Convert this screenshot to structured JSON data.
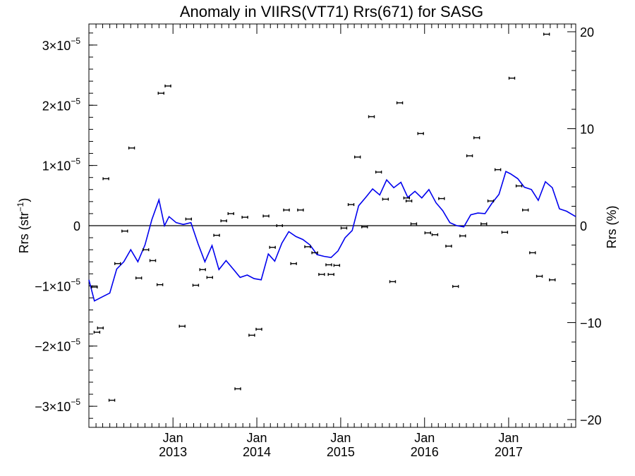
{
  "chart_data": {
    "type": "scatter",
    "title": "Anomaly in VIIRS(VT71) Rrs(671) for SASG",
    "ylabel_left": "Rrs (str",
    "ylabel_left_sup": "−1",
    "ylabel_left_close": ")",
    "ylabel_right": "Rrs (%)",
    "x_range": [
      "2012-01-01",
      "2017-10-20"
    ],
    "y_left_range": [
      -3.35e-05,
      3.35e-05
    ],
    "y_right_range": [
      -20.8,
      20.8
    ],
    "y_left_ticks": [
      {
        "value": 3e-05,
        "mantissa": "3",
        "exponent": "−5",
        "neg": false
      },
      {
        "value": 2e-05,
        "mantissa": "2",
        "exponent": "−5",
        "neg": false
      },
      {
        "value": 1e-05,
        "mantissa": "1",
        "exponent": "−5",
        "neg": false
      },
      {
        "value": 0,
        "mantissa": "0",
        "exponent": "",
        "neg": false
      },
      {
        "value": -1e-05,
        "mantissa": "1",
        "exponent": "−5",
        "neg": true
      },
      {
        "value": -2e-05,
        "mantissa": "2",
        "exponent": "−5",
        "neg": true
      },
      {
        "value": -3e-05,
        "mantissa": "3",
        "exponent": "−5",
        "neg": true
      }
    ],
    "y_right_ticks": [
      {
        "value": 20,
        "label": "20"
      },
      {
        "value": 10,
        "label": "10"
      },
      {
        "value": 0,
        "label": "0"
      },
      {
        "value": -10,
        "label": "−10"
      },
      {
        "value": -20,
        "label": "−20"
      }
    ],
    "x_ticks": [
      {
        "date": "2013-01-01",
        "month": "Jan",
        "year": "2013"
      },
      {
        "date": "2014-01-01",
        "month": "Jan",
        "year": "2014"
      },
      {
        "date": "2015-01-01",
        "month": "Jan",
        "year": "2015"
      },
      {
        "date": "2016-01-01",
        "month": "Jan",
        "year": "2016"
      },
      {
        "date": "2017-01-01",
        "month": "Jan",
        "year": "2017"
      }
    ],
    "zero_line": true,
    "line_color": "#0000ee",
    "marker_color": "#000000",
    "series": [
      {
        "kind": "points_with_error",
        "axis": "left",
        "points": [
          [
            "2012-01-25",
            -1.02e-05
          ],
          [
            "2012-02-05",
            -1.77e-05
          ],
          [
            "2012-02-20",
            -1.7e-05
          ],
          [
            "2012-03-15",
            7.8e-06
          ],
          [
            "2012-04-10",
            -2.9e-05
          ],
          [
            "2012-05-05",
            -6.3e-06
          ],
          [
            "2012-06-05",
            -9e-07
          ],
          [
            "2012-07-05",
            1.29e-05
          ],
          [
            "2012-08-05",
            -8.7e-06
          ],
          [
            "2012-09-05",
            -4e-06
          ],
          [
            "2012-10-05",
            -5.8e-06
          ],
          [
            "2012-11-05",
            -9.8e-06
          ],
          [
            "2012-11-10",
            2.2e-05
          ],
          [
            "2012-12-10",
            2.32e-05
          ],
          [
            "2013-02-10",
            -1.67e-05
          ],
          [
            "2013-03-10",
            1.1e-06
          ],
          [
            "2013-04-10",
            -9.9e-06
          ],
          [
            "2013-05-10",
            -7.3e-06
          ],
          [
            "2013-06-10",
            -8.6e-06
          ],
          [
            "2013-07-10",
            -1.6e-06
          ],
          [
            "2013-08-10",
            8e-07
          ],
          [
            "2013-09-10",
            2e-06
          ],
          [
            "2013-10-10",
            -2.71e-05
          ],
          [
            "2013-11-10",
            1.4e-06
          ],
          [
            "2013-12-10",
            -1.82e-05
          ],
          [
            "2014-01-10",
            -1.72e-05
          ],
          [
            "2014-02-10",
            1.6e-06
          ],
          [
            "2014-03-10",
            -3.6e-06
          ],
          [
            "2014-04-10",
            0.0
          ],
          [
            "2014-05-10",
            2.6e-06
          ],
          [
            "2014-06-10",
            -6.3e-06
          ],
          [
            "2014-07-10",
            2.6e-06
          ],
          [
            "2014-08-10",
            -3.5e-06
          ],
          [
            "2014-09-10",
            -4.5e-06
          ],
          [
            "2014-10-10",
            -8.1e-06
          ],
          [
            "2014-11-10",
            -6.5e-06
          ],
          [
            "2014-11-20",
            -8.1e-06
          ],
          [
            "2014-12-15",
            -6.6e-06
          ],
          [
            "2015-01-15",
            -4e-07
          ],
          [
            "2015-02-15",
            3.5e-06
          ],
          [
            "2015-03-15",
            1.14e-05
          ],
          [
            "2015-04-15",
            -2e-07
          ],
          [
            "2015-05-15",
            1.81e-05
          ],
          [
            "2015-06-15",
            8.9e-06
          ],
          [
            "2015-07-15",
            4.4e-06
          ],
          [
            "2015-08-15",
            -9.3e-06
          ],
          [
            "2015-09-15",
            2.04e-05
          ],
          [
            "2015-10-15",
            4.6e-06
          ],
          [
            "2015-10-25",
            4.1e-06
          ],
          [
            "2015-11-15",
            3e-07
          ],
          [
            "2015-12-15",
            1.53e-05
          ],
          [
            "2016-01-15",
            -1.2e-06
          ],
          [
            "2016-02-15",
            -1.5e-06
          ],
          [
            "2016-03-15",
            4.5e-06
          ],
          [
            "2016-04-15",
            -3.4e-06
          ],
          [
            "2016-05-15",
            -1.01e-05
          ],
          [
            "2016-06-15",
            -1.7e-06
          ],
          [
            "2016-07-15",
            1.16e-05
          ],
          [
            "2016-08-15",
            1.46e-05
          ],
          [
            "2016-09-15",
            3e-07
          ],
          [
            "2016-10-15",
            4.1e-06
          ],
          [
            "2016-11-15",
            9.3e-06
          ],
          [
            "2016-12-15",
            -1.1e-06
          ],
          [
            "2017-01-15",
            2.45e-05
          ],
          [
            "2017-02-15",
            6.6e-06
          ],
          [
            "2017-03-15",
            2.6e-06
          ],
          [
            "2017-04-15",
            -4.5e-06
          ],
          [
            "2017-05-15",
            -8.4e-06
          ],
          [
            "2017-06-15",
            3.18e-05
          ],
          [
            "2017-07-10",
            -9e-06
          ]
        ]
      },
      {
        "kind": "line",
        "axis": "left",
        "points": [
          [
            "2012-01-01",
            -9e-06
          ],
          [
            "2012-01-25",
            -1.25e-05
          ],
          [
            "2012-03-01",
            -1.18e-05
          ],
          [
            "2012-04-01",
            -1.12e-05
          ],
          [
            "2012-05-01",
            -7.2e-06
          ],
          [
            "2012-06-01",
            -6e-06
          ],
          [
            "2012-07-01",
            -4e-06
          ],
          [
            "2012-08-01",
            -6e-06
          ],
          [
            "2012-09-01",
            -3.2e-06
          ],
          [
            "2012-10-01",
            1e-06
          ],
          [
            "2012-11-01",
            4.3e-06
          ],
          [
            "2012-11-25",
            0.0
          ],
          [
            "2012-12-15",
            1.5e-06
          ],
          [
            "2013-01-15",
            5e-07
          ],
          [
            "2013-02-15",
            2e-07
          ],
          [
            "2013-03-20",
            5e-07
          ],
          [
            "2013-04-20",
            -3e-06
          ],
          [
            "2013-05-20",
            -6e-06
          ],
          [
            "2013-06-20",
            -3.3e-06
          ],
          [
            "2013-07-20",
            -7.3e-06
          ],
          [
            "2013-08-20",
            -5.8e-06
          ],
          [
            "2013-09-20",
            -7.2e-06
          ],
          [
            "2013-10-20",
            -8.6e-06
          ],
          [
            "2013-11-20",
            -8.2e-06
          ],
          [
            "2013-12-20",
            -8.8e-06
          ],
          [
            "2014-01-20",
            -9e-06
          ],
          [
            "2014-02-20",
            -4.7e-06
          ],
          [
            "2014-03-20",
            -5.9e-06
          ],
          [
            "2014-04-20",
            -2.9e-06
          ],
          [
            "2014-05-20",
            -1e-06
          ],
          [
            "2014-06-20",
            -1.8e-06
          ],
          [
            "2014-07-20",
            -2.3e-06
          ],
          [
            "2014-08-20",
            -3.2e-06
          ],
          [
            "2014-09-20",
            -4.8e-06
          ],
          [
            "2014-10-20",
            -5.1e-06
          ],
          [
            "2014-11-20",
            -5.3e-06
          ],
          [
            "2014-12-20",
            -4.2e-06
          ],
          [
            "2015-01-20",
            -2e-06
          ],
          [
            "2015-02-20",
            -8e-07
          ],
          [
            "2015-03-20",
            3.3e-06
          ],
          [
            "2015-04-20",
            4.7e-06
          ],
          [
            "2015-05-20",
            6.1e-06
          ],
          [
            "2015-06-20",
            5.1e-06
          ],
          [
            "2015-07-20",
            7.6e-06
          ],
          [
            "2015-08-20",
            6.3e-06
          ],
          [
            "2015-09-20",
            7.2e-06
          ],
          [
            "2015-10-20",
            4.7e-06
          ],
          [
            "2015-11-20",
            5.7e-06
          ],
          [
            "2015-12-20",
            4.6e-06
          ],
          [
            "2016-01-20",
            6e-06
          ],
          [
            "2016-02-20",
            3.8e-06
          ],
          [
            "2016-03-20",
            2.5e-06
          ],
          [
            "2016-04-20",
            5e-07
          ],
          [
            "2016-05-20",
            0.0
          ],
          [
            "2016-06-20",
            -2e-07
          ],
          [
            "2016-07-20",
            1.8e-06
          ],
          [
            "2016-08-20",
            2.1e-06
          ],
          [
            "2016-09-20",
            2e-06
          ],
          [
            "2016-10-20",
            3.7e-06
          ],
          [
            "2016-11-20",
            5.2e-06
          ],
          [
            "2016-12-20",
            9e-06
          ],
          [
            "2017-01-10",
            8.6e-06
          ],
          [
            "2017-02-10",
            7.8e-06
          ],
          [
            "2017-03-10",
            6.4e-06
          ],
          [
            "2017-04-10",
            6e-06
          ],
          [
            "2017-05-10",
            4.2e-06
          ],
          [
            "2017-06-10",
            7.3e-06
          ],
          [
            "2017-07-10",
            6.3e-06
          ],
          [
            "2017-08-10",
            2.8e-06
          ],
          [
            "2017-09-10",
            2.4e-06
          ],
          [
            "2017-10-20",
            1.5e-06
          ]
        ]
      }
    ]
  }
}
